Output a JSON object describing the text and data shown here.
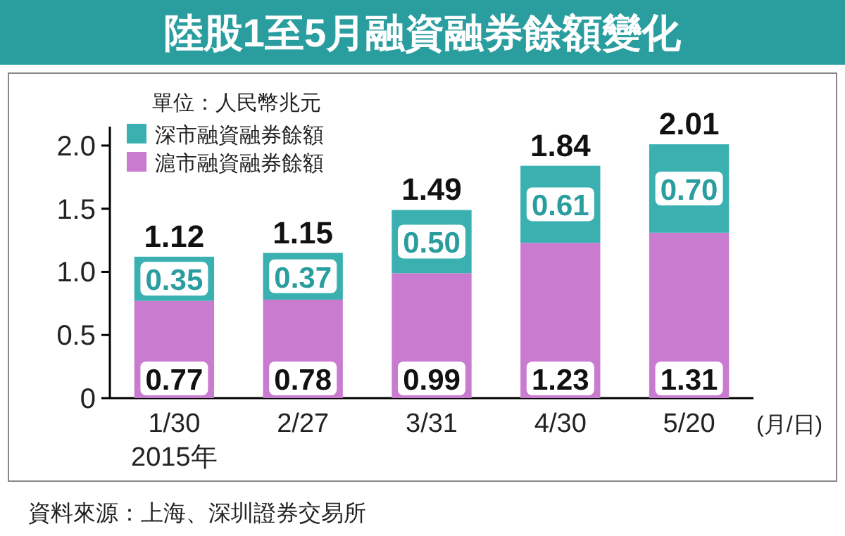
{
  "chart_data": {
    "type": "bar",
    "stacked": true,
    "title": "陸股1至5月融資融券餘額變化",
    "categories": [
      "1/30",
      "2/27",
      "3/31",
      "4/30",
      "5/20"
    ],
    "series": [
      {
        "name": "滬市融資融券餘額",
        "color": "#c97ccf",
        "values": [
          0.77,
          0.78,
          0.99,
          1.23,
          1.31
        ],
        "value_labels": [
          "0.77",
          "0.78",
          "0.99",
          "1.23",
          "1.31"
        ]
      },
      {
        "name": "深市融資融券餘額",
        "color": "#3bb0b0",
        "values": [
          0.35,
          0.37,
          0.5,
          0.61,
          0.7
        ],
        "value_labels": [
          "0.35",
          "0.37",
          "0.50",
          "0.61",
          "0.70"
        ]
      }
    ],
    "totals": [
      "1.12",
      "1.15",
      "1.49",
      "1.84",
      "2.01"
    ],
    "ylim": [
      0,
      2.15
    ],
    "yticks": [
      0,
      {
        "value": 0.5,
        "label": "0.5"
      },
      {
        "value": 1.0,
        "label": "1.0"
      },
      {
        "value": 1.5,
        "label": "1.5"
      },
      {
        "value": 2.0,
        "label": "2.0"
      }
    ],
    "legend": "top left",
    "ylabel": "單位：人民幣兆元",
    "annotations": [
      "(月/日)",
      "2015年",
      "資料來源：上海、深圳證券交易所"
    ]
  }
}
